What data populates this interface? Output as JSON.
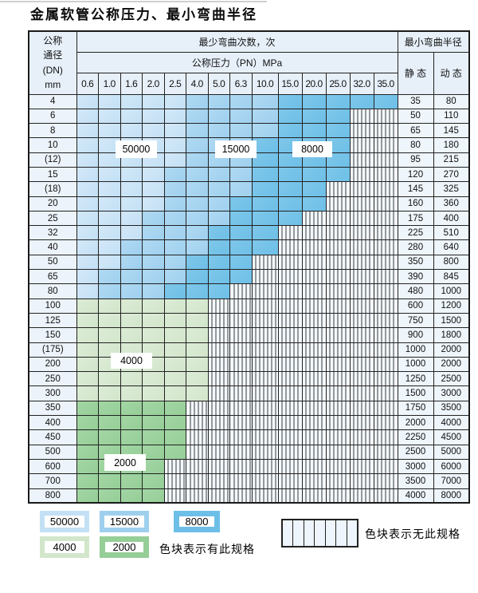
{
  "title": "金属软管公称压力、最小弯曲半径",
  "header": {
    "dn_lines": [
      "公称",
      "通径",
      "(DN)",
      "mm"
    ],
    "cycles_label": "最少弯曲次数，次",
    "pressure_label": "公称压力（PN）MPa",
    "pressure_columns": [
      "0.6",
      "1.0",
      "1.6",
      "2.0",
      "2.5",
      "4.0",
      "5.0",
      "6.3",
      "10.0",
      "15.0",
      "20.0",
      "25.0",
      "32.0",
      "35.0"
    ],
    "radius_label": "最小弯曲半径",
    "static_label": "静 态",
    "dynamic_label": "动 态"
  },
  "bands": {
    "A": {
      "label": "50000",
      "color": "#c3e0f5"
    },
    "B": {
      "label": "15000",
      "color": "#9ed0ee"
    },
    "C": {
      "label": "8000",
      "color": "#6dbfe7"
    },
    "D": {
      "label": "4000",
      "color": "#d2e6cb"
    },
    "E": {
      "label": "2000",
      "color": "#95ce97"
    },
    "X": {
      "label": "none",
      "color": "#f3f8fd"
    }
  },
  "chart_data": {
    "type": "table",
    "title": "金属软管公称压力、最小弯曲半径",
    "notes": "fills: A=50000次, B=15000次, C=8000次, D=4000次, E=2000次, X=无此规格(hatched)",
    "pressures_MPa": [
      0.6,
      1.0,
      1.6,
      2.0,
      2.5,
      4.0,
      5.0,
      6.3,
      10.0,
      15.0,
      20.0,
      25.0,
      32.0,
      35.0
    ]
  },
  "rows": [
    {
      "dn": "4",
      "fills": [
        "A",
        "A",
        "A",
        "A",
        "A",
        "B",
        "B",
        "B",
        "B",
        "C",
        "C",
        "C",
        "C",
        "C"
      ],
      "static": "35",
      "dynamic": "80"
    },
    {
      "dn": "6",
      "fills": [
        "A",
        "A",
        "A",
        "A",
        "A",
        "B",
        "B",
        "B",
        "B",
        "C",
        "C",
        "C",
        "X",
        "X"
      ],
      "static": "50",
      "dynamic": "110"
    },
    {
      "dn": "8",
      "fills": [
        "A",
        "A",
        "A",
        "A",
        "A",
        "B",
        "B",
        "B",
        "B",
        "C",
        "C",
        "C",
        "X",
        "X"
      ],
      "static": "65",
      "dynamic": "145"
    },
    {
      "dn": "10",
      "fills": [
        "A",
        "A",
        "A",
        "A",
        "A",
        "B",
        "B",
        "B",
        "C",
        "C",
        "C",
        "C",
        "X",
        "X"
      ],
      "static": "80",
      "dynamic": "180"
    },
    {
      "dn": "(12)",
      "fills": [
        "A",
        "A",
        "A",
        "A",
        "A",
        "B",
        "B",
        "B",
        "C",
        "C",
        "C",
        "C",
        "X",
        "X"
      ],
      "static": "95",
      "dynamic": "215"
    },
    {
      "dn": "15",
      "fills": [
        "A",
        "A",
        "A",
        "A",
        "B",
        "B",
        "B",
        "B",
        "C",
        "C",
        "C",
        "C",
        "X",
        "X"
      ],
      "static": "120",
      "dynamic": "270"
    },
    {
      "dn": "(18)",
      "fills": [
        "A",
        "A",
        "A",
        "A",
        "B",
        "B",
        "B",
        "B",
        "C",
        "C",
        "C",
        "X",
        "X",
        "X"
      ],
      "static": "145",
      "dynamic": "325"
    },
    {
      "dn": "20",
      "fills": [
        "A",
        "A",
        "A",
        "A",
        "B",
        "B",
        "B",
        "C",
        "C",
        "C",
        "C",
        "X",
        "X",
        "X"
      ],
      "static": "160",
      "dynamic": "360"
    },
    {
      "dn": "25",
      "fills": [
        "A",
        "A",
        "A",
        "B",
        "B",
        "B",
        "B",
        "C",
        "C",
        "C",
        "X",
        "X",
        "X",
        "X"
      ],
      "static": "175",
      "dynamic": "400"
    },
    {
      "dn": "32",
      "fills": [
        "A",
        "A",
        "A",
        "B",
        "B",
        "B",
        "C",
        "C",
        "C",
        "X",
        "X",
        "X",
        "X",
        "X"
      ],
      "static": "225",
      "dynamic": "510"
    },
    {
      "dn": "40",
      "fills": [
        "A",
        "A",
        "B",
        "B",
        "B",
        "B",
        "C",
        "C",
        "C",
        "X",
        "X",
        "X",
        "X",
        "X"
      ],
      "static": "280",
      "dynamic": "640"
    },
    {
      "dn": "50",
      "fills": [
        "A",
        "A",
        "B",
        "B",
        "B",
        "C",
        "C",
        "C",
        "X",
        "X",
        "X",
        "X",
        "X",
        "X"
      ],
      "static": "350",
      "dynamic": "800"
    },
    {
      "dn": "65",
      "fills": [
        "A",
        "B",
        "B",
        "B",
        "B",
        "C",
        "C",
        "C",
        "X",
        "X",
        "X",
        "X",
        "X",
        "X"
      ],
      "static": "390",
      "dynamic": "845"
    },
    {
      "dn": "80",
      "fills": [
        "A",
        "B",
        "B",
        "B",
        "C",
        "C",
        "C",
        "X",
        "X",
        "X",
        "X",
        "X",
        "X",
        "X"
      ],
      "static": "480",
      "dynamic": "1000"
    },
    {
      "dn": "100",
      "fills": [
        "D",
        "D",
        "D",
        "D",
        "D",
        "D",
        "X",
        "X",
        "X",
        "X",
        "X",
        "X",
        "X",
        "X"
      ],
      "static": "600",
      "dynamic": "1200"
    },
    {
      "dn": "125",
      "fills": [
        "D",
        "D",
        "D",
        "D",
        "D",
        "D",
        "X",
        "X",
        "X",
        "X",
        "X",
        "X",
        "X",
        "X"
      ],
      "static": "750",
      "dynamic": "1500"
    },
    {
      "dn": "150",
      "fills": [
        "D",
        "D",
        "D",
        "D",
        "D",
        "D",
        "X",
        "X",
        "X",
        "X",
        "X",
        "X",
        "X",
        "X"
      ],
      "static": "900",
      "dynamic": "1800"
    },
    {
      "dn": "(175)",
      "fills": [
        "D",
        "D",
        "D",
        "D",
        "D",
        "D",
        "X",
        "X",
        "X",
        "X",
        "X",
        "X",
        "X",
        "X"
      ],
      "static": "1000",
      "dynamic": "2000"
    },
    {
      "dn": "200",
      "fills": [
        "D",
        "D",
        "D",
        "D",
        "D",
        "D",
        "X",
        "X",
        "X",
        "X",
        "X",
        "X",
        "X",
        "X"
      ],
      "static": "1000",
      "dynamic": "2000"
    },
    {
      "dn": "250",
      "fills": [
        "D",
        "D",
        "D",
        "D",
        "D",
        "D",
        "X",
        "X",
        "X",
        "X",
        "X",
        "X",
        "X",
        "X"
      ],
      "static": "1250",
      "dynamic": "2500"
    },
    {
      "dn": "300",
      "fills": [
        "D",
        "D",
        "D",
        "D",
        "D",
        "D",
        "X",
        "X",
        "X",
        "X",
        "X",
        "X",
        "X",
        "X"
      ],
      "static": "1500",
      "dynamic": "3000"
    },
    {
      "dn": "350",
      "fills": [
        "E",
        "E",
        "E",
        "E",
        "E",
        "X",
        "X",
        "X",
        "X",
        "X",
        "X",
        "X",
        "X",
        "X"
      ],
      "static": "1750",
      "dynamic": "3500"
    },
    {
      "dn": "400",
      "fills": [
        "E",
        "E",
        "E",
        "E",
        "E",
        "X",
        "X",
        "X",
        "X",
        "X",
        "X",
        "X",
        "X",
        "X"
      ],
      "static": "2000",
      "dynamic": "4000"
    },
    {
      "dn": "450",
      "fills": [
        "E",
        "E",
        "E",
        "E",
        "E",
        "X",
        "X",
        "X",
        "X",
        "X",
        "X",
        "X",
        "X",
        "X"
      ],
      "static": "2250",
      "dynamic": "4500"
    },
    {
      "dn": "500",
      "fills": [
        "E",
        "E",
        "E",
        "E",
        "E",
        "X",
        "X",
        "X",
        "X",
        "X",
        "X",
        "X",
        "X",
        "X"
      ],
      "static": "2500",
      "dynamic": "5000"
    },
    {
      "dn": "600",
      "fills": [
        "E",
        "E",
        "E",
        "E",
        "X",
        "X",
        "X",
        "X",
        "X",
        "X",
        "X",
        "X",
        "X",
        "X"
      ],
      "static": "3000",
      "dynamic": "6000"
    },
    {
      "dn": "700",
      "fills": [
        "E",
        "E",
        "E",
        "E",
        "X",
        "X",
        "X",
        "X",
        "X",
        "X",
        "X",
        "X",
        "X",
        "X"
      ],
      "static": "3500",
      "dynamic": "7000"
    },
    {
      "dn": "800",
      "fills": [
        "E",
        "E",
        "E",
        "E",
        "X",
        "X",
        "X",
        "X",
        "X",
        "X",
        "X",
        "X",
        "X",
        "X"
      ],
      "static": "4000",
      "dynamic": "8000"
    }
  ],
  "overlays": {
    "l50000": "50000",
    "l15000": "15000",
    "l8000": "8000",
    "l4000": "4000",
    "l2000": "2000"
  },
  "legend": {
    "row1": [
      "50000",
      "15000",
      "8000"
    ],
    "row2": [
      "4000",
      "2000"
    ],
    "has_text": "色块表示有此规格",
    "none_text": "色块表示无此规格"
  }
}
